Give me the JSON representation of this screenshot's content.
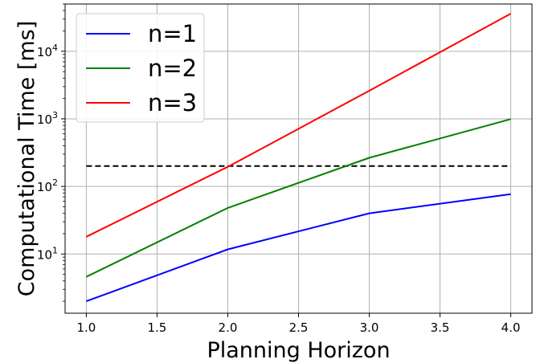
{
  "chart_data": {
    "type": "line",
    "xlabel": "Planning Horizon",
    "ylabel": "Computational Time [ms]",
    "x": [
      1.0,
      2.0,
      3.0,
      4.0
    ],
    "xlim": [
      0.85,
      4.15
    ],
    "ylim": [
      1.33,
      50000
    ],
    "yscale": "log",
    "grid": true,
    "legend_position": "top-left",
    "xticks": [
      "1.0",
      "1.5",
      "2.0",
      "2.5",
      "3.0",
      "3.5",
      "4.0"
    ],
    "xtick_values": [
      1.0,
      1.5,
      2.0,
      2.5,
      3.0,
      3.5,
      4.0
    ],
    "yticks": [
      {
        "value": 10,
        "base": "10",
        "exp": "1"
      },
      {
        "value": 100,
        "base": "10",
        "exp": "2"
      },
      {
        "value": 1000,
        "base": "10",
        "exp": "3"
      },
      {
        "value": 10000,
        "base": "10",
        "exp": "4"
      }
    ],
    "series": [
      {
        "name": "n=1",
        "color": "#0000ff",
        "values": [
          2.0,
          11.7,
          40,
          77
        ]
      },
      {
        "name": "n=2",
        "color": "#008000",
        "values": [
          4.6,
          48,
          265,
          990
        ]
      },
      {
        "name": "n=3",
        "color": "#ff0000",
        "values": [
          18,
          195,
          2600,
          36000
        ]
      }
    ],
    "reference_line": {
      "y": 200,
      "x": [
        1.0,
        4.0
      ],
      "color": "#000000",
      "style": "dashed"
    }
  }
}
